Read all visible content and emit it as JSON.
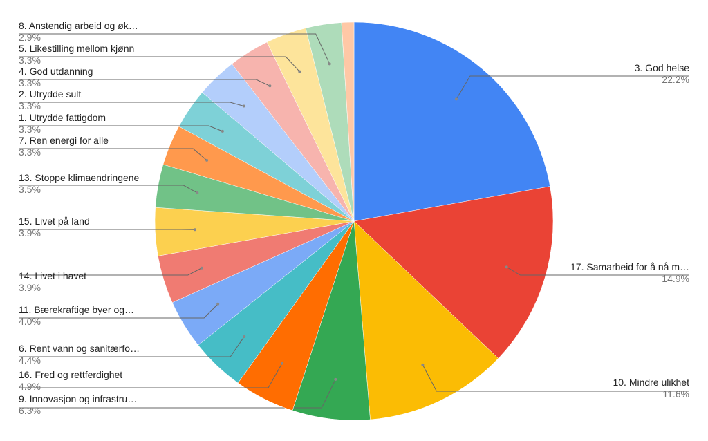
{
  "chart_data": {
    "type": "pie",
    "categories": [
      "3. God helse",
      "17. Samarbeid for å nå m…",
      "10. Mindre ulikhet",
      "9. Innovasjon og infrastru…",
      "16. Fred og rettferdighet",
      "6. Rent vann og sanitærfo…",
      "11. Bærekraftige byer og…",
      "14. Livet i havet",
      "15. Livet på land",
      "13. Stoppe klimaendringene",
      "7. Ren energi for alle",
      "1. Utrydde fattigdom",
      "2. Utrydde sult",
      "4. God utdanning",
      "5. Likestilling mellom kjønn",
      "8. Anstendig arbeid og øk…",
      null
    ],
    "values": [
      22.2,
      14.9,
      11.6,
      6.3,
      4.9,
      4.4,
      4.0,
      3.9,
      3.9,
      3.5,
      3.3,
      3.3,
      3.3,
      3.3,
      3.3,
      2.9,
      1.0
    ],
    "value_labels": [
      "22.2%",
      "14.9%",
      "11.6%",
      "6.3%",
      "4.9%",
      "4.4%",
      "4.0%",
      "3.9%",
      "3.9%",
      "3.5%",
      "3.3%",
      "3.3%",
      "3.3%",
      "3.3%",
      "3.3%",
      "2.9%",
      null
    ],
    "colors": [
      "#4285f4",
      "#ea4335",
      "#fbbc04",
      "#34a853",
      "#ff6d01",
      "#46bdc6",
      "#7baaf7",
      "#f07b72",
      "#fcd04f",
      "#71c287",
      "#ff994d",
      "#7ed1d7",
      "#b3cefb",
      "#f7b4ae",
      "#fde49b",
      "#aedcba",
      "#ffc8a6"
    ]
  }
}
